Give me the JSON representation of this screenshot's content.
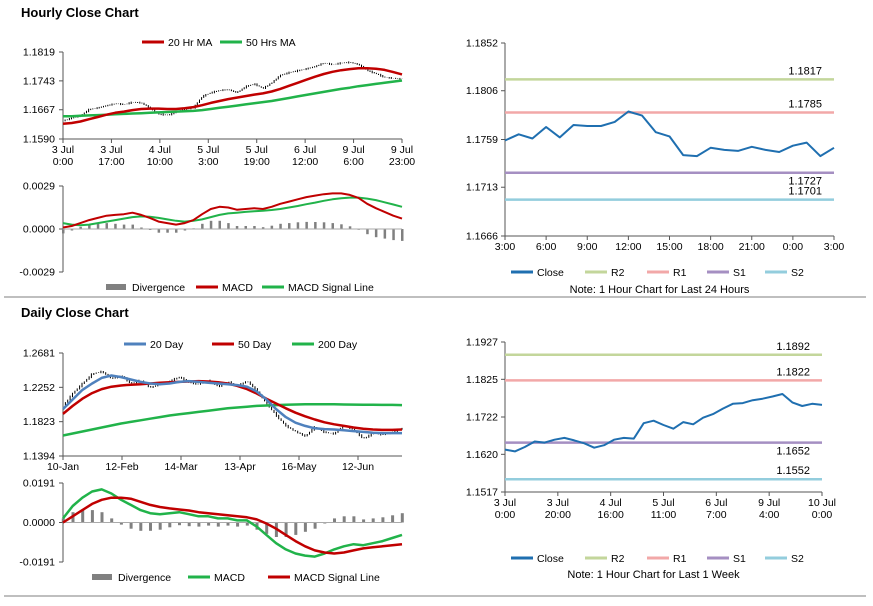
{
  "sections": {
    "hourly_title": "Hourly Close Chart",
    "daily_title": "Daily Close Chart"
  },
  "colors": {
    "red": "#c00000",
    "green": "#21b34a",
    "blue": "#4f81bd",
    "close": "#1f6fb0",
    "r2": "#c3d69b",
    "r1": "#f2a8a8",
    "s1": "#a58fc2",
    "s2": "#93cddd",
    "bar": "#808080"
  },
  "chart_data": [
    {
      "id": "hourly-price",
      "type": "line",
      "title": "Hourly Close Chart",
      "legend": [
        "20 Hr MA",
        "50 Hrs MA"
      ],
      "y_ticks": [
        "1.1819",
        "1.1743",
        "1.1667",
        "1.1590"
      ],
      "ylim": [
        1.159,
        1.1819
      ],
      "x_ticks": [
        [
          "3 Jul",
          "0:00"
        ],
        [
          "3 Jul",
          "17:00"
        ],
        [
          "4 Jul",
          "10:00"
        ],
        [
          "5 Jul",
          "3:00"
        ],
        [
          "5 Jul",
          "19:00"
        ],
        [
          "6 Jul",
          "12:00"
        ],
        [
          "9 Jul",
          "6:00"
        ],
        [
          "9 Jul",
          "23:00"
        ]
      ],
      "close": [
        1.1638,
        1.1645,
        1.1652,
        1.1668,
        1.1672,
        1.1678,
        1.1683,
        1.1681,
        1.1687,
        1.1685,
        1.1672,
        1.1655,
        1.1653,
        1.166,
        1.1668,
        1.1672,
        1.1702,
        1.1712,
        1.1718,
        1.172,
        1.1712,
        1.1728,
        1.1735,
        1.1723,
        1.1738,
        1.1758,
        1.1765,
        1.177,
        1.1775,
        1.1781,
        1.179,
        1.1786,
        1.179,
        1.1792,
        1.1786,
        1.177,
        1.1762,
        1.1752,
        1.175,
        1.1748
      ],
      "ma20": [
        1.163,
        1.1632,
        1.1636,
        1.1642,
        1.1648,
        1.1654,
        1.1659,
        1.1662,
        1.1666,
        1.1669,
        1.167,
        1.167,
        1.1669,
        1.1669,
        1.1671,
        1.1674,
        1.1679,
        1.1685,
        1.169,
        1.1695,
        1.1699,
        1.1703,
        1.1707,
        1.171,
        1.1715,
        1.1722,
        1.173,
        1.1738,
        1.1746,
        1.1754,
        1.1761,
        1.1767,
        1.1771,
        1.1774,
        1.1776,
        1.1776,
        1.1775,
        1.1772,
        1.1766,
        1.176
      ],
      "ma50": [
        1.165,
        1.165,
        1.1651,
        1.1652,
        1.1653,
        1.1654,
        1.1655,
        1.1656,
        1.1657,
        1.1658,
        1.1659,
        1.166,
        1.1661,
        1.1662,
        1.1663,
        1.1664,
        1.1666,
        1.1669,
        1.1672,
        1.1675,
        1.1678,
        1.1681,
        1.1684,
        1.1687,
        1.169,
        1.1694,
        1.1698,
        1.1702,
        1.1706,
        1.171,
        1.1714,
        1.1718,
        1.1722,
        1.1725,
        1.1729,
        1.1732,
        1.1735,
        1.1738,
        1.1741,
        1.1744
      ]
    },
    {
      "id": "hourly-macd",
      "type": "bar",
      "legend": [
        "Divergence",
        "MACD",
        "MACD Signal Line"
      ],
      "y_ticks": [
        "0.0029",
        "0.0000",
        "-0.0029"
      ],
      "ylim": [
        -0.0029,
        0.0029
      ],
      "macd": [
        0.0001,
        0.0002,
        0.0004,
        0.0006,
        0.00075,
        0.0009,
        0.00095,
        0.001,
        0.0011,
        0.00095,
        0.00075,
        0.0005,
        0.0004,
        0.0003,
        0.0004,
        0.0006,
        0.001,
        0.00135,
        0.0015,
        0.00145,
        0.0013,
        0.00135,
        0.0014,
        0.00135,
        0.0015,
        0.0017,
        0.00185,
        0.002,
        0.00215,
        0.00225,
        0.00235,
        0.0024,
        0.0024,
        0.0023,
        0.0021,
        0.0017,
        0.0014,
        0.00115,
        0.0009,
        0.0007
      ],
      "signal": [
        0.0004,
        0.0003,
        0.00025,
        0.0003,
        0.0004,
        0.0005,
        0.0006,
        0.0007,
        0.0008,
        0.00085,
        0.00082,
        0.00075,
        0.00065,
        0.00055,
        0.0005,
        0.00055,
        0.00065,
        0.0008,
        0.00095,
        0.00105,
        0.0011,
        0.00115,
        0.0012,
        0.00123,
        0.00128,
        0.00135,
        0.00145,
        0.00155,
        0.00167,
        0.00178,
        0.0019,
        0.002,
        0.00208,
        0.00212,
        0.00212,
        0.00205,
        0.00195,
        0.0018,
        0.00165,
        0.0015
      ]
    },
    {
      "id": "hourly-levels",
      "type": "line",
      "y_ticks": [
        "1.1852",
        "1.1806",
        "1.1759",
        "1.1713",
        "1.1666"
      ],
      "ylim": [
        1.1666,
        1.1852
      ],
      "x_ticks": [
        "3:00",
        "6:00",
        "9:00",
        "12:00",
        "15:00",
        "18:00",
        "21:00",
        "0:00",
        "3:00"
      ],
      "close": [
        1.1758,
        1.1764,
        1.176,
        1.1771,
        1.1761,
        1.1773,
        1.1772,
        1.1772,
        1.1776,
        1.1786,
        1.1782,
        1.1766,
        1.1762,
        1.1744,
        1.1743,
        1.1751,
        1.1749,
        1.1748,
        1.1752,
        1.1749,
        1.1747,
        1.1753,
        1.1756,
        1.1743,
        1.1751
      ],
      "levels": [
        {
          "name": "R2",
          "value": 1.1817,
          "label": "1.1817"
        },
        {
          "name": "R1",
          "value": 1.1785,
          "label": "1.1785"
        },
        {
          "name": "S1",
          "value": 1.1727,
          "label": "1.1727"
        },
        {
          "name": "S2",
          "value": 1.1701,
          "label": "1.1701"
        }
      ],
      "legend": [
        "Close",
        "R2",
        "R1",
        "S1",
        "S2"
      ],
      "note": "Note: 1 Hour Chart for Last 24 Hours"
    },
    {
      "id": "daily-price",
      "type": "line",
      "title": "Daily Close Chart",
      "legend": [
        "20 Day",
        "50 Day",
        "200 Day"
      ],
      "y_ticks": [
        "1.2681",
        "1.2252",
        "1.1823",
        "1.1394"
      ],
      "ylim": [
        1.1394,
        1.2681
      ],
      "x_ticks": [
        "10-Jan",
        "12-Feb",
        "14-Mar",
        "13-Apr",
        "16-May",
        "12-Jun"
      ],
      "close": [
        1.202,
        1.218,
        1.23,
        1.242,
        1.245,
        1.236,
        1.24,
        1.23,
        1.234,
        1.225,
        1.229,
        1.233,
        1.238,
        1.231,
        1.229,
        1.234,
        1.226,
        1.232,
        1.227,
        1.233,
        1.221,
        1.205,
        1.19,
        1.177,
        1.17,
        1.164,
        1.176,
        1.169,
        1.167,
        1.178,
        1.172,
        1.161,
        1.168,
        1.166,
        1.169,
        1.174
      ],
      "ma20": [
        1.198,
        1.21,
        1.222,
        1.23,
        1.237,
        1.24,
        1.238,
        1.235,
        1.232,
        1.23,
        1.229,
        1.23,
        1.232,
        1.233,
        1.232,
        1.231,
        1.23,
        1.229,
        1.228,
        1.226,
        1.22,
        1.21,
        1.198,
        1.188,
        1.181,
        1.177,
        1.174,
        1.173,
        1.1725,
        1.1715,
        1.1705,
        1.1695,
        1.1685,
        1.168,
        1.168,
        1.168
      ],
      "ma50": [
        1.192,
        1.202,
        1.211,
        1.218,
        1.223,
        1.226,
        1.2275,
        1.2285,
        1.229,
        1.23,
        1.231,
        1.2315,
        1.232,
        1.2325,
        1.233,
        1.2325,
        1.2315,
        1.23,
        1.227,
        1.223,
        1.2175,
        1.211,
        1.205,
        1.199,
        1.1935,
        1.189,
        1.185,
        1.1815,
        1.179,
        1.177,
        1.175,
        1.1735,
        1.1725,
        1.172,
        1.172,
        1.1725
      ],
      "ma200": [
        1.165,
        1.1675,
        1.17,
        1.1725,
        1.175,
        1.1775,
        1.18,
        1.182,
        1.184,
        1.186,
        1.188,
        1.19,
        1.1915,
        1.193,
        1.1945,
        1.196,
        1.1975,
        1.199,
        1.2,
        1.201,
        1.202,
        1.2025,
        1.203,
        1.2035,
        1.2038,
        1.204,
        1.204,
        1.204,
        1.204,
        1.2038,
        1.2036,
        1.2035,
        1.2034,
        1.2033,
        1.2032,
        1.203
      ]
    },
    {
      "id": "daily-macd",
      "type": "bar",
      "legend": [
        "Divergence",
        "MACD",
        "MACD Signal Line"
      ],
      "y_ticks": [
        "0.0191",
        "0.0000",
        "-0.0191"
      ],
      "ylim": [
        -0.0191,
        0.0191
      ],
      "macd": [
        0.002,
        0.008,
        0.012,
        0.015,
        0.016,
        0.014,
        0.011,
        0.0085,
        0.006,
        0.0045,
        0.004,
        0.0045,
        0.005,
        0.004,
        0.003,
        0.003,
        0.002,
        0.002,
        0.001,
        0.001,
        -0.002,
        -0.006,
        -0.01,
        -0.013,
        -0.015,
        -0.016,
        -0.0165,
        -0.015,
        -0.013,
        -0.0115,
        -0.0105,
        -0.011,
        -0.01,
        -0.009,
        -0.0075,
        -0.006
      ],
      "signal": [
        0.0,
        0.003,
        0.006,
        0.009,
        0.011,
        0.012,
        0.012,
        0.0115,
        0.01,
        0.0085,
        0.0075,
        0.0068,
        0.0063,
        0.0058,
        0.005,
        0.0045,
        0.004,
        0.0035,
        0.003,
        0.0025,
        0.0015,
        -0.0005,
        -0.003,
        -0.006,
        -0.009,
        -0.0115,
        -0.0135,
        -0.0145,
        -0.015,
        -0.0145,
        -0.0135,
        -0.0125,
        -0.012,
        -0.0115,
        -0.011,
        -0.0105
      ]
    },
    {
      "id": "daily-levels",
      "type": "line",
      "y_ticks": [
        "1.1927",
        "1.1825",
        "1.1722",
        "1.1620",
        "1.1517"
      ],
      "ylim": [
        1.1517,
        1.1927
      ],
      "x_ticks": [
        [
          "3 Jul",
          "0:00"
        ],
        [
          "3 Jul",
          "20:00"
        ],
        [
          "4 Jul",
          "16:00"
        ],
        [
          "5 Jul",
          "11:00"
        ],
        [
          "6 Jul",
          "7:00"
        ],
        [
          "9 Jul",
          "4:00"
        ],
        [
          "10 Jul",
          "0:00"
        ]
      ],
      "close": [
        1.1633,
        1.1628,
        1.164,
        1.1655,
        1.1652,
        1.166,
        1.1665,
        1.1658,
        1.165,
        1.1638,
        1.1645,
        1.166,
        1.1665,
        1.1663,
        1.1705,
        1.1712,
        1.17,
        1.169,
        1.1708,
        1.1702,
        1.172,
        1.173,
        1.1745,
        1.1758,
        1.176,
        1.1768,
        1.1772,
        1.1778,
        1.1785,
        1.1762,
        1.1752,
        1.1758,
        1.1755
      ],
      "levels": [
        {
          "name": "R2",
          "value": 1.1892,
          "label": "1.1892"
        },
        {
          "name": "R1",
          "value": 1.1822,
          "label": "1.1822"
        },
        {
          "name": "S1",
          "value": 1.1652,
          "label": "1.1652"
        },
        {
          "name": "S2",
          "value": 1.1552,
          "label": "1.1552"
        }
      ],
      "legend": [
        "Close",
        "R2",
        "R1",
        "S1",
        "S2"
      ],
      "note": "Note: 1 Hour Chart for Last 1 Week"
    }
  ]
}
